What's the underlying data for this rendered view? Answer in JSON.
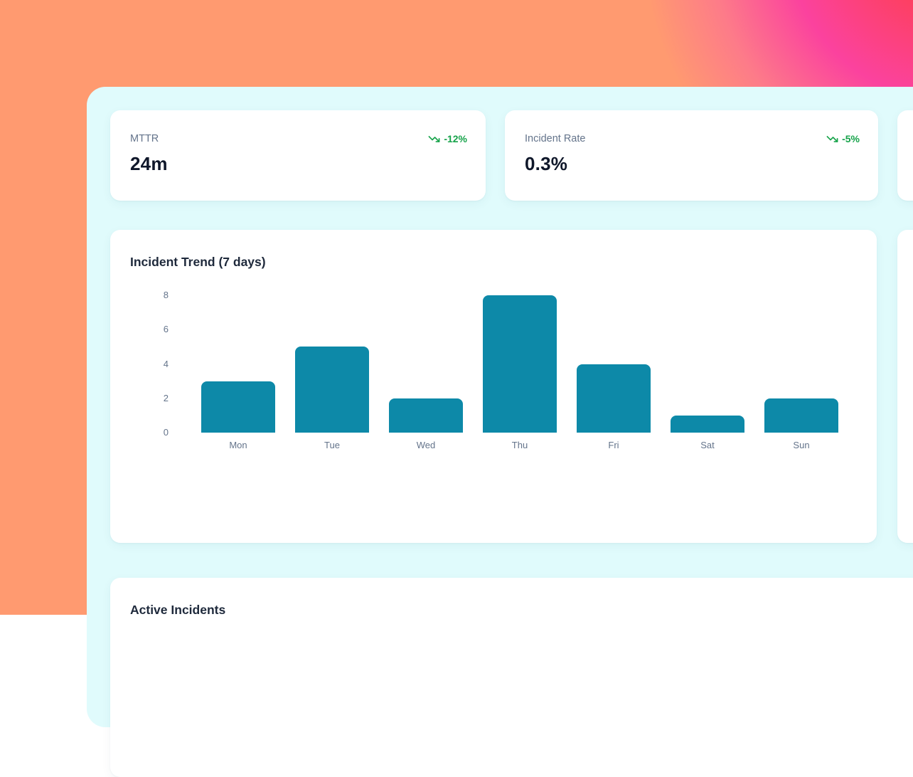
{
  "metrics": [
    {
      "label": "MTTR",
      "value": "24m",
      "trend": "-12%"
    },
    {
      "label": "Incident Rate",
      "value": "0.3%",
      "trend": "-5%"
    }
  ],
  "chart_card": {
    "title": "Incident Trend (7 days)"
  },
  "active_card": {
    "title": "Active Incidents"
  },
  "chart_data": {
    "type": "bar",
    "title": "Incident Trend (7 days)",
    "categories": [
      "Mon",
      "Tue",
      "Wed",
      "Thu",
      "Fri",
      "Sat",
      "Sun"
    ],
    "values": [
      3,
      5,
      2,
      8,
      4,
      1,
      2
    ],
    "yticks": [
      0,
      2,
      4,
      6,
      8
    ],
    "ylim": [
      0,
      8
    ],
    "xlabel": "",
    "ylabel": "",
    "grid": false,
    "legend": false,
    "bar_color": "#0d89a8"
  },
  "colors": {
    "background_orange": "#ff9a70",
    "background_pink": "#fb429e",
    "background_red": "#ff4153",
    "panel_background": "#e0fbfc",
    "card_background": "#ffffff",
    "bar_fill": "#0d89a8",
    "trend_green": "#16a34a",
    "title_text": "#1e293b",
    "label_text": "#64748b",
    "value_text": "#0f172a"
  }
}
